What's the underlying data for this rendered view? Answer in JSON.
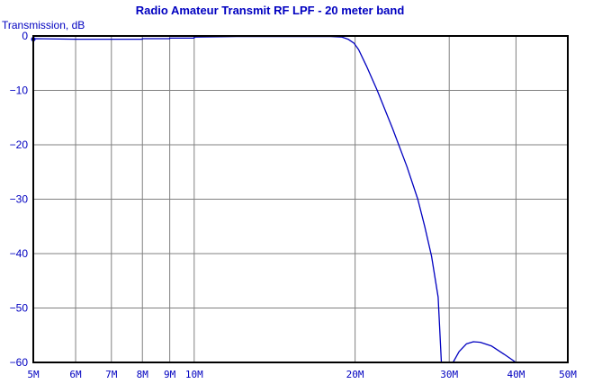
{
  "chart_data": {
    "type": "line",
    "title": "Radio Amateur Transmit RF LPF - 20 meter band",
    "ylabel": "Transmission, dB",
    "xlabel": "",
    "x_scale": "log",
    "x_unit": "Hz",
    "xlim": [
      5000000,
      50000000
    ],
    "ylim": [
      -60,
      0
    ],
    "x_ticks": [
      {
        "value": 5000000,
        "label": "5M"
      },
      {
        "value": 6000000,
        "label": "6M"
      },
      {
        "value": 7000000,
        "label": "7M"
      },
      {
        "value": 8000000,
        "label": "8M"
      },
      {
        "value": 9000000,
        "label": "9M"
      },
      {
        "value": 10000000,
        "label": "10M"
      },
      {
        "value": 20000000,
        "label": "20M"
      },
      {
        "value": 30000000,
        "label": "30M"
      },
      {
        "value": 40000000,
        "label": "40M"
      },
      {
        "value": 50000000,
        "label": "50M"
      }
    ],
    "y_ticks": [
      {
        "value": 0,
        "label": "0"
      },
      {
        "value": -10,
        "label": "−10"
      },
      {
        "value": -20,
        "label": "−20"
      },
      {
        "value": -30,
        "label": "−30"
      },
      {
        "value": -40,
        "label": "−40"
      },
      {
        "value": -50,
        "label": "−50"
      },
      {
        "value": -60,
        "label": "−60"
      }
    ],
    "grid": true,
    "series": [
      {
        "color": "#0000c0",
        "x": [
          5000000,
          5050000,
          6000000,
          7000000,
          8000000,
          8000000,
          9000000,
          9000000,
          10000000,
          10000000,
          12000000,
          15000000,
          18000000,
          18900000,
          19400000,
          19900000,
          20300000,
          21000000,
          22000000,
          23500000,
          25000000,
          26200000,
          27000000,
          27800000,
          28600000,
          29000000,
          30000000,
          30500000,
          31300000,
          32300000,
          33300000,
          34300000,
          36000000,
          38000000,
          40000000,
          40500000,
          50000000
        ],
        "y": [
          -0.6,
          -0.5,
          -0.6,
          -0.6,
          -0.6,
          -0.5,
          -0.5,
          -0.4,
          -0.4,
          -0.2,
          -0.1,
          -0.1,
          -0.1,
          -0.2,
          -0.6,
          -1.3,
          -2.5,
          -5.5,
          -10,
          -17,
          -24,
          -30,
          -35,
          -40.5,
          -48,
          -60,
          -60,
          -60,
          -58,
          -56.6,
          -56.2,
          -56.3,
          -57,
          -58.5,
          -60,
          -60,
          -60
        ]
      }
    ]
  }
}
